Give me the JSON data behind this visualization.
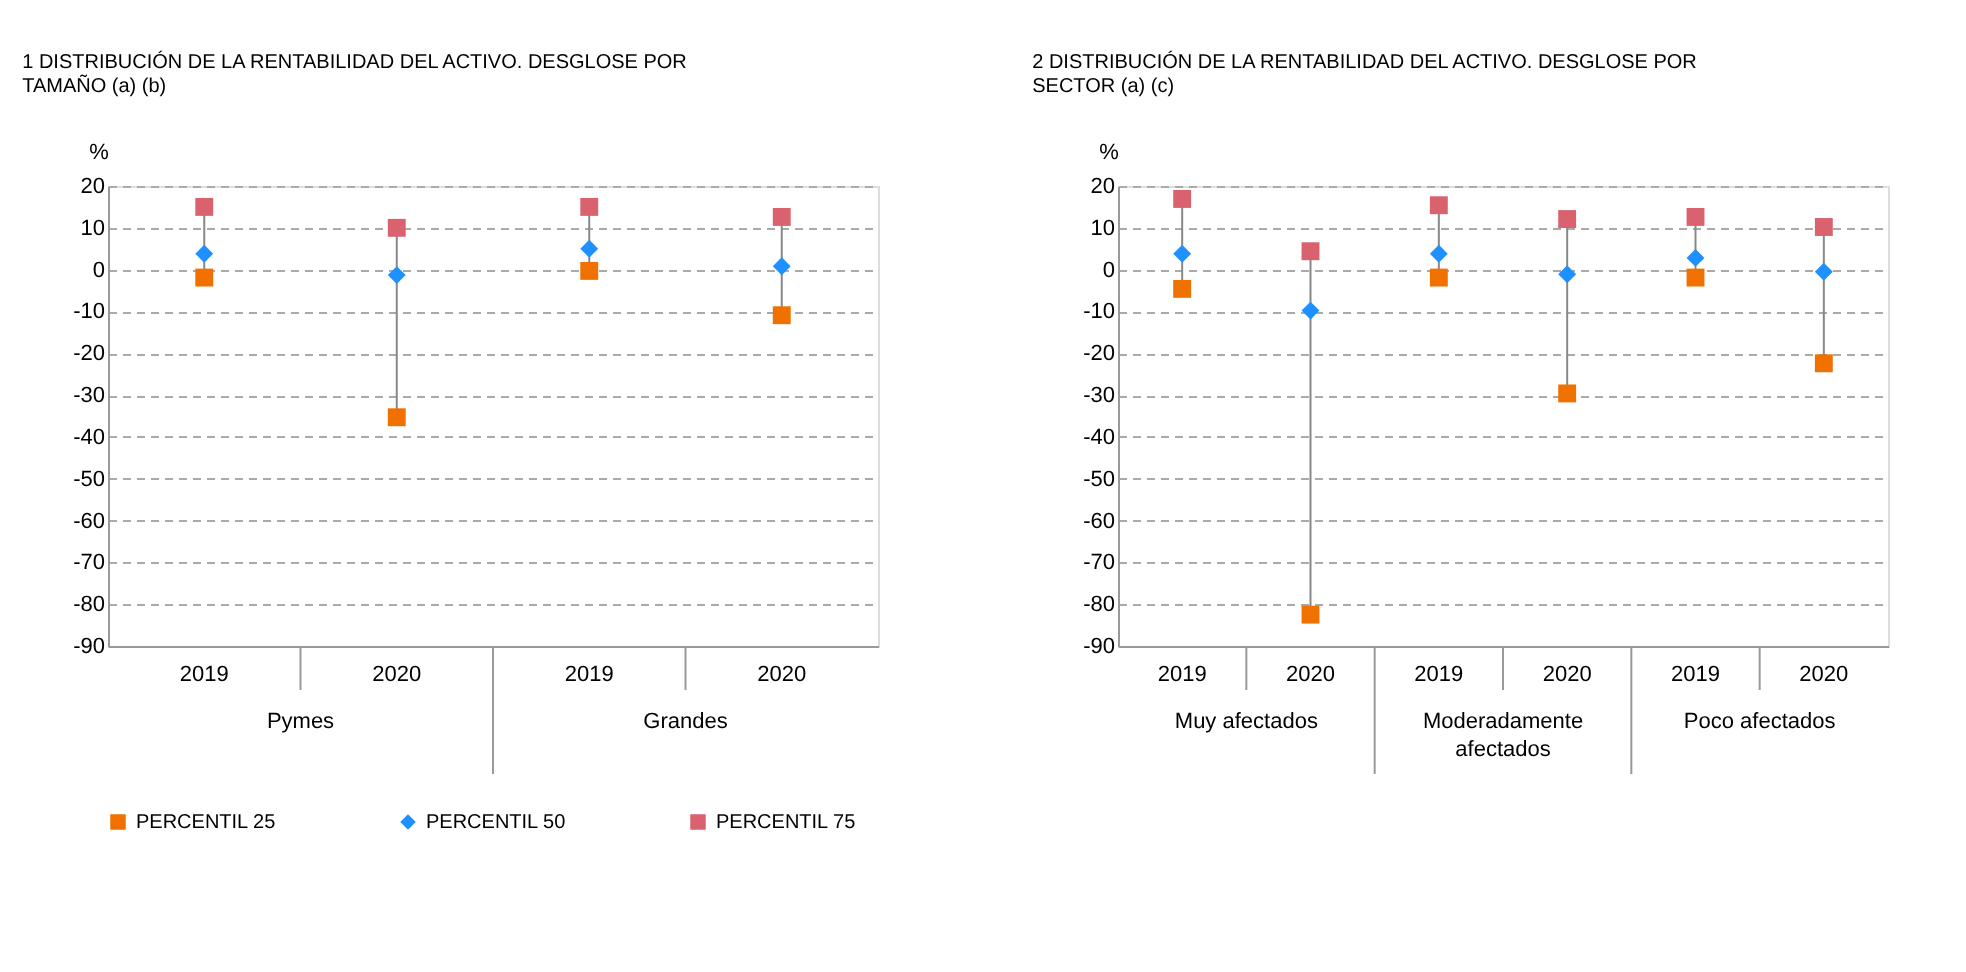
{
  "chart_data": [
    {
      "type": "scatter",
      "title": "1 DISTRIBUCIÓN DE LA RENTABILIDAD DEL ACTIVO. DESGLOSE POR TAMAÑO (a) (b)",
      "ylabel": "%",
      "categories": [
        "2019",
        "2020",
        "2019",
        "2020"
      ],
      "annotations": [
        "Pymes",
        "Grandes"
      ],
      "series": [
        {
          "name": "PERCENTIL 25",
          "color": "#f07000",
          "marker": "square",
          "values": [
            -1.9,
            -35.3,
            -0.3,
            -10.9
          ]
        },
        {
          "name": "PERCENTIL 50",
          "color": "#1e90ff",
          "marker": "diamond",
          "values": [
            3.8,
            -1.3,
            5,
            0.8
          ]
        },
        {
          "name": "PERCENTIL 75",
          "color": "#d9626e",
          "marker": "square",
          "values": [
            15,
            10,
            15,
            12.6
          ]
        }
      ],
      "ylim": [
        -90,
        20
      ],
      "yticks": [
        -90,
        -80,
        -70,
        -60,
        -50,
        -40,
        -30,
        -20,
        -10,
        0,
        10,
        20
      ],
      "grid": "y",
      "legend": "bottom"
    },
    {
      "type": "scatter",
      "title": "2 DISTRIBUCIÓN DE LA RENTABILIDAD DEL ACTIVO. DESGLOSE POR SECTOR (a) (c)",
      "ylabel": "%",
      "categories": [
        "2019",
        "2020",
        "2019",
        "2020",
        "2019",
        "2020"
      ],
      "annotations": [
        "Muy afectados",
        "Moderadamente afectados",
        "Poco afectados"
      ],
      "series": [
        {
          "name": "PERCENTIL 25",
          "color": "#f07000",
          "marker": "square",
          "values": [
            -4.6,
            -82.5,
            -1.9,
            -29.6,
            -1.9,
            -22.4
          ]
        },
        {
          "name": "PERCENTIL 50",
          "color": "#1e90ff",
          "marker": "diamond",
          "values": [
            3.8,
            -9.8,
            3.8,
            -1.1,
            2.8,
            -0.5
          ]
        },
        {
          "name": "PERCENTIL 75",
          "color": "#d9626e",
          "marker": "square",
          "values": [
            16.9,
            4.4,
            15.4,
            12.1,
            12.6,
            10.2
          ]
        }
      ],
      "ylim": [
        -90,
        20
      ],
      "yticks": [
        -90,
        -80,
        -70,
        -60,
        -50,
        -40,
        -30,
        -20,
        -10,
        0,
        10,
        20
      ],
      "grid": "y",
      "legend": "bottom"
    }
  ]
}
